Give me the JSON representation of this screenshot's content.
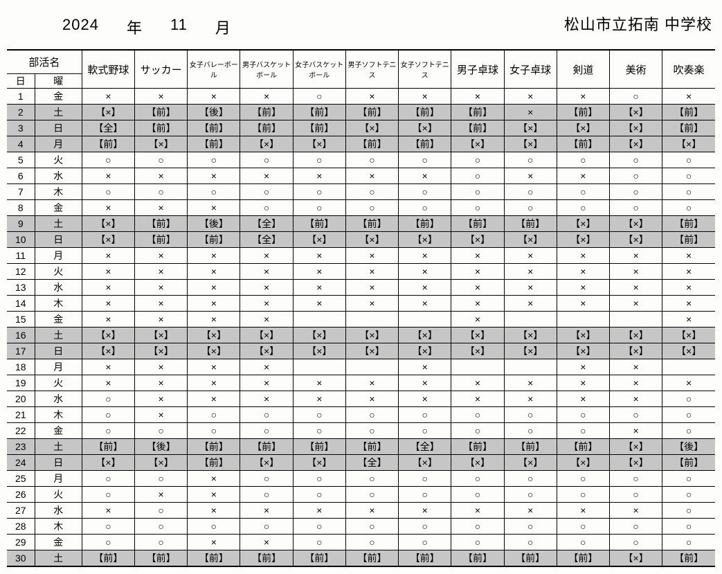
{
  "header": {
    "year": "2024",
    "year_label": "年",
    "month": "11",
    "month_label": "月",
    "school": "松山市立拓南 中学校"
  },
  "table": {
    "club_header": "部活名",
    "day_header": "日",
    "dow_header": "曜",
    "clubs": [
      {
        "name": "軟式野球",
        "small": false
      },
      {
        "name": "サッカー",
        "small": false
      },
      {
        "name": "女子バレーボール",
        "small": true
      },
      {
        "name": "男子バスケットボール",
        "small": true
      },
      {
        "name": "女子バスケットボール",
        "small": true
      },
      {
        "name": "男子ソフトテニス",
        "small": true
      },
      {
        "name": "女子ソフトテニス",
        "small": true
      },
      {
        "name": "男子卓球",
        "small": false
      },
      {
        "name": "女子卓球",
        "small": false
      },
      {
        "name": "剣道",
        "small": false
      },
      {
        "name": "美術",
        "small": false
      },
      {
        "name": "吹奏楽",
        "small": false
      }
    ],
    "rows": [
      {
        "day": "1",
        "dow": "金",
        "shaded": false,
        "cells": [
          "×",
          "×",
          "×",
          "×",
          "○",
          "×",
          "×",
          "×",
          "×",
          "×",
          "○",
          "×"
        ]
      },
      {
        "day": "2",
        "dow": "土",
        "shaded": true,
        "cells": [
          "【×】",
          "【前】",
          "【後】",
          "【前】",
          "【前】",
          "【前】",
          "【前】",
          "【前】",
          "×",
          "【前】",
          "【×】",
          "【前】"
        ]
      },
      {
        "day": "3",
        "dow": "日",
        "shaded": true,
        "cells": [
          "【全】",
          "【前】",
          "【前】",
          "【前】",
          "【前】",
          "【×】",
          "【×】",
          "【前】",
          "【×】",
          "【×】",
          "【×】",
          "【前】"
        ]
      },
      {
        "day": "4",
        "dow": "月",
        "shaded": true,
        "cells": [
          "【前】",
          "【×】",
          "【前】",
          "【×】",
          "【×】",
          "【前】",
          "【前】",
          "【×】",
          "【×】",
          "【前】",
          "【×】",
          "【×】"
        ]
      },
      {
        "day": "5",
        "dow": "火",
        "shaded": false,
        "cells": [
          "○",
          "○",
          "○",
          "○",
          "○",
          "○",
          "○",
          "○",
          "○",
          "○",
          "○",
          "○"
        ]
      },
      {
        "day": "6",
        "dow": "水",
        "shaded": false,
        "cells": [
          "×",
          "×",
          "×",
          "×",
          "×",
          "×",
          "×",
          "○",
          "×",
          "×",
          "○",
          "○"
        ]
      },
      {
        "day": "7",
        "dow": "木",
        "shaded": false,
        "cells": [
          "○",
          "○",
          "○",
          "○",
          "○",
          "○",
          "○",
          "○",
          "○",
          "○",
          "○",
          "○"
        ]
      },
      {
        "day": "8",
        "dow": "金",
        "shaded": false,
        "cells": [
          "×",
          "×",
          "×",
          "○",
          "○",
          "○",
          "○",
          "○",
          "○",
          "○",
          "○",
          "○"
        ]
      },
      {
        "day": "9",
        "dow": "土",
        "shaded": true,
        "cells": [
          "【×】",
          "【前】",
          "【後】",
          "【全】",
          "【前】",
          "【前】",
          "【前】",
          "【前】",
          "【前】",
          "【×】",
          "【×】",
          "【前】"
        ]
      },
      {
        "day": "10",
        "dow": "日",
        "shaded": true,
        "cells": [
          "【×】",
          "【前】",
          "【前】",
          "【全】",
          "【×】",
          "【×】",
          "【×】",
          "【×】",
          "【×】",
          "【×】",
          "【×】",
          "【前】"
        ]
      },
      {
        "day": "11",
        "dow": "月",
        "shaded": false,
        "cells": [
          "×",
          "×",
          "×",
          "×",
          "×",
          "×",
          "×",
          "×",
          "×",
          "×",
          "×",
          "×"
        ]
      },
      {
        "day": "12",
        "dow": "火",
        "shaded": false,
        "cells": [
          "×",
          "×",
          "×",
          "×",
          "×",
          "×",
          "×",
          "×",
          "×",
          "×",
          "×",
          "×"
        ]
      },
      {
        "day": "13",
        "dow": "水",
        "shaded": false,
        "cells": [
          "×",
          "×",
          "×",
          "×",
          "×",
          "×",
          "×",
          "×",
          "×",
          "×",
          "×",
          "×"
        ]
      },
      {
        "day": "14",
        "dow": "木",
        "shaded": false,
        "cells": [
          "×",
          "×",
          "×",
          "×",
          "×",
          "×",
          "×",
          "×",
          "×",
          "×",
          "×",
          "×"
        ]
      },
      {
        "day": "15",
        "dow": "金",
        "shaded": false,
        "cells": [
          "×",
          "×",
          "×",
          "×",
          "",
          "",
          "",
          "×",
          "",
          "",
          "",
          "×"
        ]
      },
      {
        "day": "16",
        "dow": "土",
        "shaded": true,
        "cells": [
          "【×】",
          "【×】",
          "【×】",
          "【×】",
          "【×】",
          "【×】",
          "【×】",
          "【×】",
          "【×】",
          "【×】",
          "【×】",
          "【×】"
        ]
      },
      {
        "day": "17",
        "dow": "日",
        "shaded": true,
        "cells": [
          "【×】",
          "【×】",
          "【×】",
          "【×】",
          "【×】",
          "【×】",
          "【×】",
          "【×】",
          "【×】",
          "【×】",
          "【×】",
          "【×】"
        ]
      },
      {
        "day": "18",
        "dow": "月",
        "shaded": false,
        "cells": [
          "×",
          "×",
          "×",
          "×",
          "",
          "",
          "×",
          "",
          "",
          "×",
          "×",
          ""
        ]
      },
      {
        "day": "19",
        "dow": "火",
        "shaded": false,
        "cells": [
          "×",
          "×",
          "×",
          "×",
          "×",
          "×",
          "×",
          "×",
          "×",
          "×",
          "×",
          "×"
        ]
      },
      {
        "day": "20",
        "dow": "水",
        "shaded": false,
        "cells": [
          "○",
          "×",
          "×",
          "×",
          "×",
          "×",
          "×",
          "×",
          "×",
          "×",
          "×",
          "○"
        ]
      },
      {
        "day": "21",
        "dow": "木",
        "shaded": false,
        "cells": [
          "○",
          "×",
          "○",
          "○",
          "○",
          "○",
          "○",
          "○",
          "○",
          "○",
          "○",
          "○"
        ]
      },
      {
        "day": "22",
        "dow": "金",
        "shaded": false,
        "cells": [
          "○",
          "○",
          "○",
          "○",
          "○",
          "○",
          "○",
          "○",
          "○",
          "○",
          "×",
          "○"
        ]
      },
      {
        "day": "23",
        "dow": "土",
        "shaded": true,
        "cells": [
          "【前】",
          "【後】",
          "【前】",
          "【前】",
          "【前】",
          "【前】",
          "【全】",
          "【前】",
          "【前】",
          "【前】",
          "【×】",
          "【後】"
        ]
      },
      {
        "day": "24",
        "dow": "日",
        "shaded": true,
        "cells": [
          "【×】",
          "【×】",
          "【前】",
          "【×】",
          "【×】",
          "【全】",
          "【×】",
          "【×】",
          "【×】",
          "【×】",
          "【×】",
          "【前】"
        ]
      },
      {
        "day": "25",
        "dow": "月",
        "shaded": false,
        "cells": [
          "○",
          "○",
          "×",
          "○",
          "○",
          "○",
          "○",
          "○",
          "○",
          "○",
          "○",
          "○"
        ]
      },
      {
        "day": "26",
        "dow": "火",
        "shaded": false,
        "cells": [
          "○",
          "×",
          "×",
          "○",
          "○",
          "○",
          "○",
          "○",
          "○",
          "○",
          "○",
          "○"
        ]
      },
      {
        "day": "27",
        "dow": "水",
        "shaded": false,
        "cells": [
          "×",
          "○",
          "×",
          "×",
          "×",
          "×",
          "×",
          "×",
          "×",
          "×",
          "×",
          "○"
        ]
      },
      {
        "day": "28",
        "dow": "木",
        "shaded": false,
        "cells": [
          "○",
          "○",
          "○",
          "○",
          "○",
          "○",
          "○",
          "○",
          "○",
          "○",
          "○",
          "○"
        ]
      },
      {
        "day": "29",
        "dow": "金",
        "shaded": false,
        "cells": [
          "○",
          "○",
          "×",
          "×",
          "○",
          "○",
          "○",
          "○",
          "○",
          "○",
          "○",
          "○"
        ]
      },
      {
        "day": "30",
        "dow": "土",
        "shaded": true,
        "cells": [
          "【前】",
          "【前】",
          "【前】",
          "【前】",
          "【前】",
          "【前】",
          "【前】",
          "【前】",
          "【前】",
          "【前】",
          "【×】",
          "【前】"
        ]
      }
    ]
  },
  "styling": {
    "background_color": "#fdfdfb",
    "shaded_color": "#c6c6c6",
    "border_color": "#000000",
    "header_fontsize": 22,
    "cell_fontsize": 14,
    "small_header_fontsize": 10
  }
}
